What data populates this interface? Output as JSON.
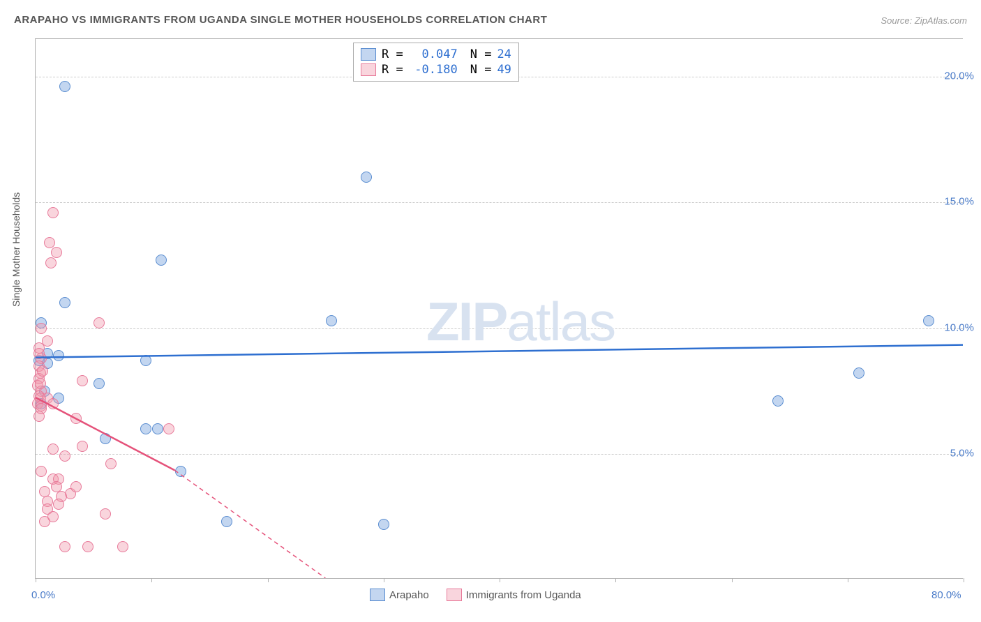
{
  "title": "ARAPAHO VS IMMIGRANTS FROM UGANDA SINGLE MOTHER HOUSEHOLDS CORRELATION CHART",
  "source_label": "Source: ZipAtlas.com",
  "y_axis_label": "Single Mother Households",
  "watermark_zip": "ZIP",
  "watermark_atlas": "atlas",
  "chart": {
    "type": "scatter",
    "xlim": [
      0,
      80
    ],
    "ylim": [
      0,
      21.5
    ],
    "x_ticks_major": [
      0,
      10,
      20,
      30,
      40,
      50,
      60,
      70,
      80
    ],
    "x_tick_labels": [
      {
        "value": 0,
        "label": "0.0%"
      },
      {
        "value": 80,
        "label": "80.0%"
      }
    ],
    "y_ticks": [
      5,
      10,
      15,
      20
    ],
    "y_tick_labels": [
      "5.0%",
      "10.0%",
      "15.0%",
      "20.0%"
    ],
    "grid_color": "#cccccc",
    "background_color": "#ffffff",
    "axis_color": "#b0b0b0",
    "point_size": 16,
    "series": [
      {
        "name": "Arapaho",
        "color_fill": "rgba(122,165,222,0.45)",
        "color_stroke": "#5a8dd0",
        "R": "0.047",
        "N": "24",
        "trendline": {
          "color": "#2e6fd0",
          "width": 2.5,
          "solid_from_x": 0,
          "solid_to_x": 80,
          "y_start": 8.8,
          "y_end": 9.3
        },
        "points": [
          {
            "x": 2.5,
            "y": 19.6
          },
          {
            "x": 28.5,
            "y": 16.0
          },
          {
            "x": 10.8,
            "y": 12.7
          },
          {
            "x": 2.5,
            "y": 11.0
          },
          {
            "x": 25.5,
            "y": 10.3
          },
          {
            "x": 77.0,
            "y": 10.3
          },
          {
            "x": 0.5,
            "y": 10.2
          },
          {
            "x": 1.0,
            "y": 9.0
          },
          {
            "x": 2.0,
            "y": 8.9
          },
          {
            "x": 0.3,
            "y": 8.7
          },
          {
            "x": 1.0,
            "y": 8.6
          },
          {
            "x": 9.5,
            "y": 8.7
          },
          {
            "x": 71.0,
            "y": 8.2
          },
          {
            "x": 5.5,
            "y": 7.8
          },
          {
            "x": 0.8,
            "y": 7.5
          },
          {
            "x": 64.0,
            "y": 7.1
          },
          {
            "x": 2.0,
            "y": 7.2
          },
          {
            "x": 9.5,
            "y": 6.0
          },
          {
            "x": 10.5,
            "y": 6.0
          },
          {
            "x": 6.0,
            "y": 5.6
          },
          {
            "x": 12.5,
            "y": 4.3
          },
          {
            "x": 16.5,
            "y": 2.3
          },
          {
            "x": 30.0,
            "y": 2.2
          },
          {
            "x": 0.5,
            "y": 7.0
          }
        ]
      },
      {
        "name": "Immigrants from Uganda",
        "color_fill": "rgba(240,150,170,0.4)",
        "color_stroke": "#e87a9a",
        "R": "-0.180",
        "N": "49",
        "trendline": {
          "color": "#e5527a",
          "width": 2.5,
          "solid_from_x": 0,
          "solid_to_x": 12,
          "dashed_to_x": 25,
          "y_start": 7.2,
          "y_mid": 4.3,
          "y_end": 0
        },
        "points": [
          {
            "x": 1.5,
            "y": 14.6
          },
          {
            "x": 1.2,
            "y": 13.4
          },
          {
            "x": 1.8,
            "y": 13.0
          },
          {
            "x": 1.3,
            "y": 12.6
          },
          {
            "x": 5.5,
            "y": 10.2
          },
          {
            "x": 0.5,
            "y": 10.0
          },
          {
            "x": 1.0,
            "y": 9.5
          },
          {
            "x": 0.3,
            "y": 9.2
          },
          {
            "x": 0.5,
            "y": 8.8
          },
          {
            "x": 0.3,
            "y": 8.5
          },
          {
            "x": 0.4,
            "y": 8.2
          },
          {
            "x": 0.3,
            "y": 8.0
          },
          {
            "x": 4.0,
            "y": 7.9
          },
          {
            "x": 0.2,
            "y": 7.7
          },
          {
            "x": 0.5,
            "y": 7.5
          },
          {
            "x": 0.3,
            "y": 7.3
          },
          {
            "x": 0.4,
            "y": 7.2
          },
          {
            "x": 1.0,
            "y": 7.2
          },
          {
            "x": 0.2,
            "y": 7.0
          },
          {
            "x": 0.5,
            "y": 6.9
          },
          {
            "x": 3.5,
            "y": 6.4
          },
          {
            "x": 11.5,
            "y": 6.0
          },
          {
            "x": 4.0,
            "y": 5.3
          },
          {
            "x": 1.5,
            "y": 5.2
          },
          {
            "x": 2.5,
            "y": 4.9
          },
          {
            "x": 6.5,
            "y": 4.6
          },
          {
            "x": 0.5,
            "y": 4.3
          },
          {
            "x": 1.5,
            "y": 4.0
          },
          {
            "x": 2.0,
            "y": 4.0
          },
          {
            "x": 1.8,
            "y": 3.7
          },
          {
            "x": 3.0,
            "y": 3.4
          },
          {
            "x": 3.5,
            "y": 3.7
          },
          {
            "x": 0.8,
            "y": 3.5
          },
          {
            "x": 2.2,
            "y": 3.3
          },
          {
            "x": 1.0,
            "y": 3.1
          },
          {
            "x": 6.0,
            "y": 2.6
          },
          {
            "x": 0.8,
            "y": 2.3
          },
          {
            "x": 2.5,
            "y": 1.3
          },
          {
            "x": 4.5,
            "y": 1.3
          },
          {
            "x": 7.5,
            "y": 1.3
          },
          {
            "x": 1.0,
            "y": 2.8
          },
          {
            "x": 1.5,
            "y": 2.5
          },
          {
            "x": 2.0,
            "y": 3.0
          },
          {
            "x": 0.3,
            "y": 6.5
          },
          {
            "x": 0.5,
            "y": 6.8
          },
          {
            "x": 0.4,
            "y": 7.8
          },
          {
            "x": 0.6,
            "y": 8.3
          },
          {
            "x": 1.5,
            "y": 7.0
          },
          {
            "x": 0.3,
            "y": 9.0
          }
        ]
      }
    ]
  },
  "legend_top_stat_label_R": "R = ",
  "legend_top_stat_label_N": "N = ",
  "stat_value_color": "#2e6fd0",
  "legend_bottom": [
    "Arapaho",
    "Immigrants from Uganda"
  ]
}
